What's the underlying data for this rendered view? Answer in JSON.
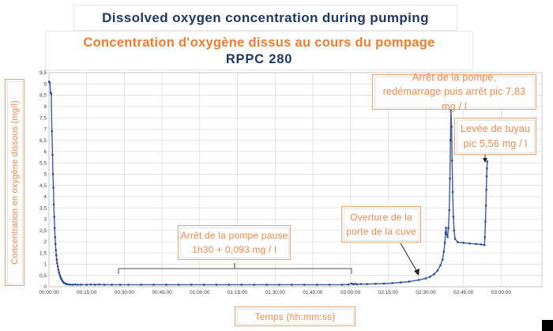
{
  "titles": {
    "main_en": "Dissolved oxygen concentration during pumping",
    "main_fr": "Concentration d'oxygène dissus au cours du pompage",
    "subtitle": "RPPC 280"
  },
  "colors": {
    "navy": "#1f3864",
    "orange": "#ed7d31",
    "annotation_orange": "#ed8c52",
    "annotation_border": "#f0a473",
    "series_line": "#3d5c9d",
    "gridline": "#d9d9d9"
  },
  "chart_data": {
    "type": "line",
    "title": "Concentration d'oxygène dissus au cours du pompage RPPC 280",
    "xlabel": "Temps (hh:mm:ss)",
    "ylabel": "Concentration en oxygène dissous (mg/l)",
    "x_tick_labels": [
      "00:00:00",
      "00:15:00",
      "00:30:00",
      "00:45:00",
      "01:00:00",
      "01:15:00",
      "01:30:00",
      "01:45:00",
      "02:00:00",
      "02:15:00",
      "02:30:00",
      "02:45:00",
      "03:00:00"
    ],
    "y_tick_labels": [
      "0",
      "0,5",
      "1",
      "1,5",
      "2",
      "2,5",
      "3",
      "3,5",
      "4",
      "4,5",
      "5",
      "5,5",
      "6",
      "6,5",
      "7",
      "7,5",
      "8",
      "8,5",
      "9",
      "9,5"
    ],
    "ylim": [
      0,
      9.5
    ],
    "xlim_seconds": [
      0,
      10800
    ],
    "grid": true,
    "legend": false,
    "series": [
      {
        "name": "Oxygène dissous (mg/l)",
        "points": [
          [
            0,
            9.1
          ],
          [
            20,
            9.05
          ],
          [
            40,
            8.62
          ],
          [
            55,
            8.55
          ],
          [
            70,
            6.9
          ],
          [
            85,
            5.85
          ],
          [
            95,
            5.0
          ],
          [
            105,
            4.4
          ],
          [
            115,
            3.65
          ],
          [
            125,
            3.1
          ],
          [
            135,
            2.6
          ],
          [
            145,
            2.2
          ],
          [
            155,
            1.9
          ],
          [
            165,
            1.62
          ],
          [
            175,
            1.4
          ],
          [
            185,
            1.2
          ],
          [
            195,
            1.05
          ],
          [
            210,
            0.9
          ],
          [
            225,
            0.76
          ],
          [
            240,
            0.64
          ],
          [
            255,
            0.54
          ],
          [
            270,
            0.45
          ],
          [
            285,
            0.38
          ],
          [
            300,
            0.32
          ],
          [
            320,
            0.26
          ],
          [
            340,
            0.21
          ],
          [
            360,
            0.17
          ],
          [
            390,
            0.14
          ],
          [
            420,
            0.12
          ],
          [
            450,
            0.105
          ],
          [
            500,
            0.095
          ],
          [
            560,
            0.09
          ],
          [
            620,
            0.1
          ],
          [
            680,
            0.09
          ],
          [
            760,
            0.095
          ],
          [
            900,
            0.09
          ],
          [
            1000,
            0.1
          ],
          [
            1100,
            0.09
          ],
          [
            1200,
            0.1
          ],
          [
            1320,
            0.09
          ],
          [
            1500,
            0.09
          ],
          [
            1700,
            0.09
          ],
          [
            1900,
            0.09
          ],
          [
            2200,
            0.09
          ],
          [
            2500,
            0.09
          ],
          [
            2800,
            0.09
          ],
          [
            3100,
            0.09
          ],
          [
            3400,
            0.09
          ],
          [
            3700,
            0.09
          ],
          [
            4000,
            0.09
          ],
          [
            4300,
            0.09
          ],
          [
            4600,
            0.09
          ],
          [
            4900,
            0.09
          ],
          [
            5200,
            0.09
          ],
          [
            5500,
            0.09
          ],
          [
            5800,
            0.09
          ],
          [
            6100,
            0.09
          ],
          [
            6400,
            0.09
          ],
          [
            6700,
            0.09
          ],
          [
            7000,
            0.09
          ],
          [
            7150,
            0.1
          ],
          [
            7230,
            0.14
          ],
          [
            7270,
            0.11
          ],
          [
            7310,
            0.13
          ],
          [
            7360,
            0.11
          ],
          [
            7450,
            0.12
          ],
          [
            7600,
            0.12
          ],
          [
            7800,
            0.13
          ],
          [
            8000,
            0.14
          ],
          [
            8200,
            0.16
          ],
          [
            8400,
            0.19
          ],
          [
            8600,
            0.23
          ],
          [
            8830,
            0.3
          ],
          [
            9000,
            0.37
          ],
          [
            9100,
            0.44
          ],
          [
            9200,
            0.56
          ],
          [
            9280,
            0.72
          ],
          [
            9350,
            0.95
          ],
          [
            9400,
            1.2
          ],
          [
            9430,
            1.55
          ],
          [
            9455,
            1.95
          ],
          [
            9470,
            2.4
          ],
          [
            9482,
            2.62
          ],
          [
            9500,
            2.32
          ],
          [
            9520,
            2.2
          ],
          [
            9540,
            2.6
          ],
          [
            9560,
            3.4
          ],
          [
            9575,
            4.8
          ],
          [
            9588,
            6.5
          ],
          [
            9600,
            7.83
          ],
          [
            9615,
            7.1
          ],
          [
            9628,
            5.6
          ],
          [
            9642,
            4.2
          ],
          [
            9658,
            3.1
          ],
          [
            9675,
            2.5
          ],
          [
            9700,
            2.12
          ],
          [
            9760,
            1.98
          ],
          [
            9900,
            1.95
          ],
          [
            10050,
            1.92
          ],
          [
            10200,
            1.9
          ],
          [
            10320,
            1.88
          ],
          [
            10400,
            1.85
          ],
          [
            10412,
            2.2
          ],
          [
            10424,
            2.9
          ],
          [
            10436,
            3.6
          ],
          [
            10446,
            4.3
          ],
          [
            10454,
            4.9
          ],
          [
            10461,
            5.25
          ],
          [
            10468,
            5.56
          ]
        ]
      }
    ],
    "annotations": [
      {
        "id": "pump-stop-restart",
        "lines": [
          "Arrêt de la pompe,",
          "redémarrage puis arrêt pic 7,83 mg / l"
        ],
        "peak_value_mg_l": 7.83
      },
      {
        "id": "hose-lift",
        "lines": [
          "Levée de tuyau",
          "pic 5,56 mg / l"
        ],
        "peak_value_mg_l": 5.56
      },
      {
        "id": "tank-door-open",
        "lines": [
          "Overture de la",
          "porte de la cuve"
        ]
      },
      {
        "id": "pump-pause",
        "lines": [
          "Arrêt de la pompe pause",
          "1h30 + 0,093 mg / l"
        ],
        "plateau_value_mg_l": 0.093
      }
    ]
  }
}
